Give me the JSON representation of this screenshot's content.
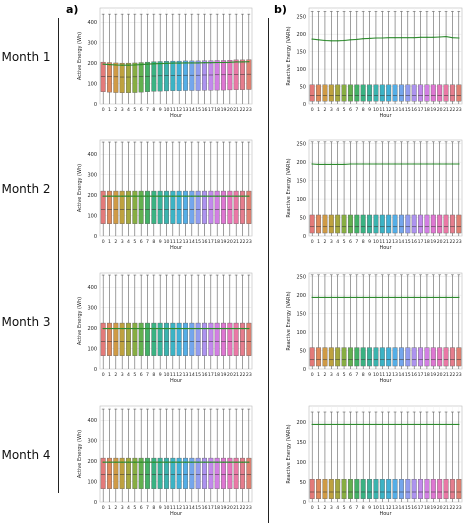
{
  "panel_letters": [
    "a)",
    "b)"
  ],
  "months": [
    "Month 1",
    "Month 2",
    "Month 3",
    "Month 4"
  ],
  "colors": {
    "mean_line": "#2e8b2e",
    "box_palette": [
      "#e37a7a",
      "#df8a5c",
      "#cf9a46",
      "#bea13f",
      "#a4a83e",
      "#87ad42",
      "#63b04f",
      "#43b167",
      "#3ab282",
      "#3ab39a",
      "#3bb3ae",
      "#3cb3c4",
      "#42b1d8",
      "#55aee6",
      "#74a6ec",
      "#939cef",
      "#ad93ef",
      "#c289ec",
      "#d27fe3",
      "#de77d2",
      "#e675bd",
      "#e978a5",
      "#e57d8d",
      "#e08173"
    ]
  },
  "chart_data": [
    {
      "type": "box",
      "panel": "a",
      "month": "Month 1",
      "xlabel": "Hour",
      "ylabel": "Active Energy (Wh)",
      "categories": [
        "0",
        "1",
        "2",
        "3",
        "4",
        "5",
        "6",
        "7",
        "8",
        "9",
        "10",
        "11",
        "12",
        "13",
        "14",
        "15",
        "16",
        "17",
        "18",
        "19",
        "20",
        "21",
        "22",
        "23"
      ],
      "ylim": [
        0,
        470
      ],
      "yticks": [
        0,
        100,
        200,
        300,
        400
      ],
      "q1": [
        60,
        58,
        56,
        55,
        55,
        56,
        58,
        60,
        62,
        63,
        64,
        65,
        65,
        66,
        66,
        66,
        67,
        67,
        68,
        68,
        69,
        70,
        70,
        71
      ],
      "median": [
        135,
        134,
        133,
        132,
        132,
        133,
        134,
        136,
        137,
        138,
        139,
        140,
        140,
        141,
        141,
        141,
        142,
        142,
        143,
        143,
        144,
        145,
        145,
        146
      ],
      "q3": [
        205,
        203,
        201,
        200,
        200,
        201,
        203,
        205,
        207,
        208,
        209,
        210,
        210,
        211,
        211,
        211,
        212,
        212,
        213,
        213,
        214,
        216,
        216,
        217
      ],
      "mean": [
        195,
        193,
        191,
        190,
        190,
        191,
        193,
        195,
        197,
        198,
        199,
        200,
        200,
        201,
        201,
        201,
        202,
        202,
        203,
        203,
        204,
        206,
        206,
        207
      ],
      "whisker_high": [
        440,
        440,
        440,
        440,
        440,
        440,
        440,
        440,
        440,
        440,
        440,
        440,
        440,
        440,
        440,
        440,
        440,
        440,
        440,
        440,
        440,
        440,
        440,
        440
      ],
      "grid": true
    },
    {
      "type": "box",
      "panel": "b",
      "month": "Month 1",
      "xlabel": "Hour",
      "ylabel": "Reactive Energy (VARh)",
      "categories": [
        "0",
        "1",
        "2",
        "3",
        "4",
        "5",
        "6",
        "7",
        "8",
        "9",
        "10",
        "11",
        "12",
        "13",
        "14",
        "15",
        "16",
        "17",
        "18",
        "19",
        "20",
        "21",
        "22",
        "23"
      ],
      "ylim": [
        0,
        275
      ],
      "yticks": [
        0,
        50,
        100,
        150,
        200,
        250
      ],
      "q1": [
        8,
        8,
        8,
        8,
        8,
        8,
        8,
        8,
        8,
        8,
        8,
        8,
        8,
        8,
        8,
        8,
        8,
        8,
        8,
        8,
        8,
        8,
        8,
        8
      ],
      "median": [
        25,
        25,
        25,
        25,
        25,
        25,
        25,
        25,
        25,
        25,
        25,
        25,
        25,
        25,
        25,
        25,
        25,
        25,
        25,
        25,
        25,
        25,
        25,
        25
      ],
      "q3": [
        55,
        55,
        55,
        55,
        55,
        55,
        55,
        55,
        55,
        55,
        55,
        55,
        55,
        55,
        55,
        55,
        55,
        55,
        55,
        55,
        55,
        55,
        55,
        55
      ],
      "mean": [
        186,
        184,
        182,
        181,
        181,
        182,
        184,
        185,
        187,
        188,
        189,
        189,
        190,
        190,
        190,
        190,
        190,
        191,
        191,
        191,
        192,
        193,
        190,
        189
      ],
      "whisker_high": [
        265,
        265,
        265,
        265,
        265,
        265,
        265,
        265,
        265,
        265,
        265,
        265,
        265,
        265,
        265,
        265,
        265,
        265,
        265,
        265,
        265,
        265,
        265,
        265
      ],
      "grid": true
    },
    {
      "type": "box",
      "panel": "a",
      "month": "Month 2",
      "xlabel": "Hour",
      "ylabel": "Active Energy (Wh)",
      "categories": [
        "0",
        "1",
        "2",
        "3",
        "4",
        "5",
        "6",
        "7",
        "8",
        "9",
        "10",
        "11",
        "12",
        "13",
        "14",
        "15",
        "16",
        "17",
        "18",
        "19",
        "20",
        "21",
        "22",
        "23"
      ],
      "ylim": [
        0,
        470
      ],
      "yticks": [
        0,
        100,
        200,
        300,
        400
      ],
      "q1": [
        60,
        60,
        60,
        60,
        60,
        60,
        60,
        60,
        60,
        60,
        60,
        60,
        60,
        60,
        60,
        60,
        60,
        60,
        60,
        60,
        60,
        60,
        60,
        60
      ],
      "median": [
        130,
        130,
        130,
        130,
        130,
        130,
        130,
        130,
        130,
        130,
        130,
        130,
        130,
        130,
        130,
        130,
        130,
        130,
        130,
        130,
        130,
        130,
        130,
        130
      ],
      "q3": [
        220,
        220,
        220,
        220,
        220,
        220,
        220,
        220,
        220,
        220,
        220,
        220,
        220,
        220,
        220,
        220,
        220,
        220,
        220,
        220,
        220,
        220,
        220,
        220
      ],
      "mean": [
        195,
        195,
        195,
        195,
        195,
        195,
        195,
        195,
        195,
        195,
        195,
        195,
        195,
        195,
        195,
        195,
        195,
        195,
        195,
        195,
        195,
        195,
        195,
        195
      ],
      "whisker_high": [
        460,
        460,
        460,
        460,
        460,
        460,
        460,
        460,
        460,
        460,
        460,
        460,
        460,
        460,
        460,
        460,
        460,
        460,
        460,
        460,
        460,
        460,
        460,
        460
      ],
      "grid": true
    },
    {
      "type": "box",
      "panel": "b",
      "month": "Month 2",
      "xlabel": "Hour",
      "ylabel": "Reactive Energy (VARh)",
      "categories": [
        "0",
        "1",
        "2",
        "3",
        "4",
        "5",
        "6",
        "7",
        "8",
        "9",
        "10",
        "11",
        "12",
        "13",
        "14",
        "15",
        "16",
        "17",
        "18",
        "19",
        "20",
        "21",
        "22",
        "23"
      ],
      "ylim": [
        0,
        260
      ],
      "yticks": [
        0,
        50,
        100,
        150,
        200,
        250
      ],
      "q1": [
        8,
        8,
        8,
        8,
        8,
        8,
        8,
        8,
        8,
        8,
        8,
        8,
        8,
        8,
        8,
        8,
        8,
        8,
        8,
        8,
        8,
        8,
        8,
        8
      ],
      "median": [
        25,
        25,
        25,
        25,
        25,
        25,
        25,
        25,
        25,
        25,
        25,
        25,
        25,
        25,
        25,
        25,
        25,
        25,
        25,
        25,
        25,
        25,
        25,
        25
      ],
      "q3": [
        57,
        57,
        57,
        57,
        57,
        57,
        57,
        57,
        57,
        57,
        57,
        57,
        57,
        57,
        57,
        57,
        57,
        57,
        57,
        57,
        57,
        57,
        57,
        57
      ],
      "mean": [
        195,
        194,
        194,
        194,
        194,
        194,
        195,
        195,
        195,
        195,
        195,
        195,
        195,
        195,
        195,
        195,
        195,
        195,
        195,
        195,
        195,
        195,
        195,
        195
      ],
      "whisker_high": [
        255,
        255,
        255,
        255,
        255,
        255,
        255,
        255,
        255,
        255,
        255,
        255,
        255,
        255,
        255,
        255,
        255,
        255,
        255,
        255,
        255,
        255,
        255,
        255
      ],
      "grid": true
    },
    {
      "type": "box",
      "panel": "a",
      "month": "Month 3",
      "xlabel": "Hour",
      "ylabel": "Active Energy (Wh)",
      "categories": [
        "0",
        "1",
        "2",
        "3",
        "4",
        "5",
        "6",
        "7",
        "8",
        "9",
        "10",
        "11",
        "12",
        "13",
        "14",
        "15",
        "16",
        "17",
        "18",
        "19",
        "20",
        "21",
        "22",
        "23"
      ],
      "ylim": [
        0,
        470
      ],
      "yticks": [
        0,
        100,
        200,
        300,
        400
      ],
      "q1": [
        65,
        65,
        65,
        65,
        65,
        65,
        65,
        65,
        65,
        65,
        65,
        65,
        65,
        65,
        65,
        65,
        65,
        65,
        65,
        65,
        65,
        65,
        65,
        65
      ],
      "median": [
        135,
        135,
        135,
        135,
        135,
        135,
        135,
        135,
        135,
        135,
        135,
        135,
        135,
        135,
        135,
        135,
        135,
        135,
        135,
        135,
        135,
        135,
        135,
        135
      ],
      "q3": [
        225,
        225,
        225,
        225,
        225,
        225,
        225,
        225,
        225,
        225,
        225,
        225,
        225,
        225,
        225,
        225,
        225,
        225,
        225,
        225,
        225,
        225,
        225,
        225
      ],
      "mean": [
        198,
        198,
        198,
        198,
        198,
        198,
        198,
        198,
        198,
        198,
        198,
        198,
        198,
        198,
        198,
        198,
        198,
        198,
        198,
        198,
        198,
        198,
        198,
        198
      ],
      "whisker_high": [
        460,
        460,
        460,
        460,
        460,
        460,
        460,
        460,
        460,
        460,
        460,
        460,
        460,
        460,
        460,
        460,
        460,
        460,
        460,
        460,
        460,
        460,
        460,
        460
      ],
      "grid": true
    },
    {
      "type": "box",
      "panel": "b",
      "month": "Month 3",
      "xlabel": "Hour",
      "ylabel": "Reactive Energy (VARh)",
      "categories": [
        "0",
        "1",
        "2",
        "3",
        "4",
        "5",
        "6",
        "7",
        "8",
        "9",
        "10",
        "11",
        "12",
        "13",
        "14",
        "15",
        "16",
        "17",
        "18",
        "19",
        "20",
        "21",
        "22",
        "23"
      ],
      "ylim": [
        0,
        260
      ],
      "yticks": [
        0,
        50,
        100,
        150,
        200,
        250
      ],
      "q1": [
        8,
        8,
        8,
        8,
        8,
        8,
        8,
        8,
        8,
        8,
        8,
        8,
        8,
        8,
        8,
        8,
        8,
        8,
        8,
        8,
        8,
        8,
        8,
        8
      ],
      "median": [
        25,
        25,
        25,
        25,
        25,
        25,
        25,
        25,
        25,
        25,
        25,
        25,
        25,
        25,
        25,
        25,
        25,
        25,
        25,
        25,
        25,
        25,
        25,
        25
      ],
      "q3": [
        58,
        58,
        58,
        58,
        58,
        58,
        58,
        58,
        58,
        58,
        58,
        58,
        58,
        58,
        58,
        58,
        58,
        58,
        58,
        58,
        58,
        58,
        58,
        58
      ],
      "mean": [
        194,
        194,
        194,
        194,
        194,
        194,
        194,
        194,
        194,
        194,
        194,
        194,
        194,
        194,
        194,
        194,
        194,
        194,
        194,
        194,
        194,
        194,
        194,
        194
      ],
      "whisker_high": [
        255,
        255,
        255,
        255,
        255,
        255,
        255,
        255,
        255,
        255,
        255,
        255,
        255,
        255,
        255,
        255,
        255,
        255,
        255,
        255,
        255,
        255,
        255,
        255
      ],
      "grid": true
    },
    {
      "type": "box",
      "panel": "a",
      "month": "Month 4",
      "xlabel": "Hour",
      "ylabel": "Active Energy (Wh)",
      "categories": [
        "0",
        "1",
        "2",
        "3",
        "4",
        "5",
        "6",
        "7",
        "8",
        "9",
        "10",
        "11",
        "12",
        "13",
        "14",
        "15",
        "16",
        "17",
        "18",
        "19",
        "20",
        "21",
        "22",
        "23"
      ],
      "ylim": [
        0,
        470
      ],
      "yticks": [
        0,
        100,
        200,
        300,
        400
      ],
      "q1": [
        65,
        65,
        65,
        65,
        65,
        65,
        65,
        65,
        65,
        65,
        65,
        65,
        65,
        65,
        65,
        65,
        65,
        65,
        65,
        65,
        65,
        65,
        65,
        65
      ],
      "median": [
        135,
        135,
        135,
        135,
        135,
        135,
        135,
        135,
        135,
        135,
        135,
        135,
        135,
        135,
        135,
        135,
        135,
        135,
        135,
        135,
        135,
        135,
        135,
        135
      ],
      "q3": [
        215,
        215,
        215,
        215,
        215,
        215,
        215,
        215,
        215,
        215,
        215,
        215,
        215,
        215,
        215,
        215,
        215,
        215,
        215,
        215,
        215,
        215,
        215,
        215
      ],
      "mean": [
        195,
        195,
        195,
        195,
        195,
        195,
        195,
        195,
        195,
        195,
        195,
        195,
        195,
        195,
        195,
        195,
        195,
        195,
        195,
        195,
        195,
        195,
        195,
        195
      ],
      "whisker_high": [
        455,
        455,
        455,
        455,
        455,
        455,
        455,
        455,
        455,
        455,
        455,
        455,
        455,
        455,
        455,
        455,
        455,
        455,
        455,
        455,
        455,
        455,
        455,
        455
      ],
      "grid": true
    },
    {
      "type": "box",
      "panel": "b",
      "month": "Month 4",
      "xlabel": "Hour",
      "ylabel": "Reactive Energy (VARh)",
      "categories": [
        "0",
        "1",
        "2",
        "3",
        "4",
        "5",
        "6",
        "7",
        "8",
        "9",
        "10",
        "11",
        "12",
        "13",
        "14",
        "15",
        "16",
        "17",
        "18",
        "19",
        "20",
        "21",
        "22",
        "23"
      ],
      "ylim": [
        0,
        240
      ],
      "yticks": [
        0,
        50,
        100,
        150,
        200
      ],
      "q1": [
        8,
        8,
        8,
        8,
        8,
        8,
        8,
        8,
        8,
        8,
        8,
        8,
        8,
        8,
        8,
        8,
        8,
        8,
        8,
        8,
        8,
        8,
        8,
        8
      ],
      "median": [
        25,
        25,
        25,
        25,
        25,
        25,
        25,
        25,
        25,
        25,
        25,
        25,
        25,
        25,
        25,
        25,
        25,
        25,
        25,
        25,
        25,
        25,
        25,
        25
      ],
      "q3": [
        57,
        57,
        57,
        57,
        57,
        57,
        57,
        57,
        57,
        57,
        57,
        57,
        57,
        57,
        57,
        57,
        57,
        57,
        57,
        57,
        57,
        57,
        57,
        57
      ],
      "mean": [
        194,
        194,
        194,
        194,
        194,
        194,
        194,
        194,
        194,
        194,
        194,
        194,
        194,
        194,
        194,
        194,
        194,
        194,
        194,
        194,
        194,
        194,
        194,
        194
      ],
      "whisker_high": [
        225,
        225,
        225,
        225,
        225,
        225,
        225,
        225,
        225,
        225,
        225,
        225,
        225,
        225,
        225,
        225,
        225,
        225,
        225,
        225,
        225,
        225,
        225,
        225
      ],
      "grid": true
    }
  ]
}
